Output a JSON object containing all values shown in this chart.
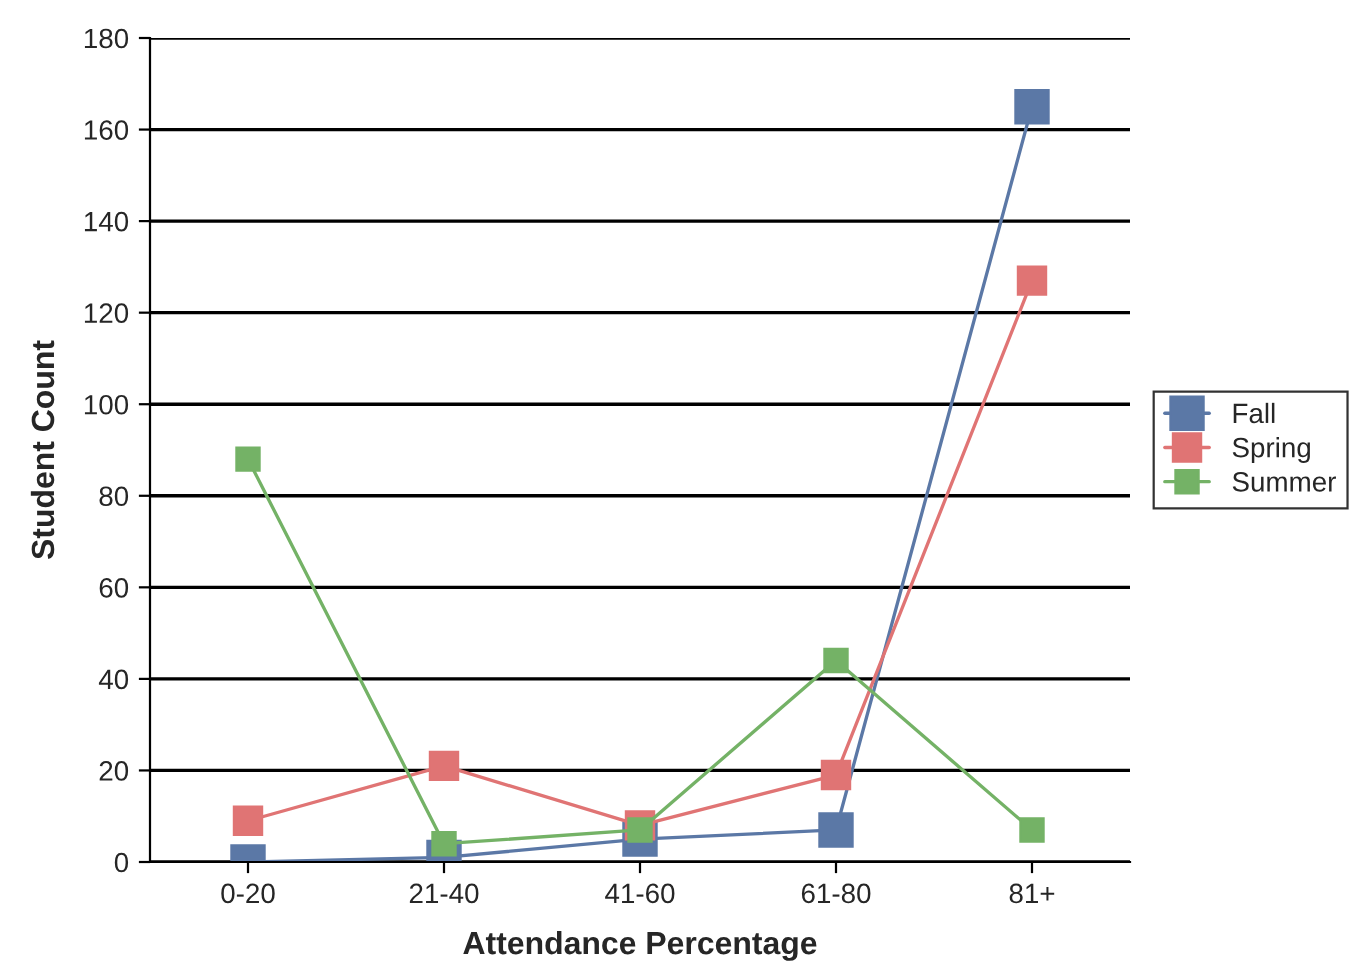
{
  "chart_data": {
    "type": "line",
    "xlabel": "Attendance Percentage",
    "ylabel": "Student Count",
    "categories": [
      "0-20",
      "21-40",
      "41-60",
      "61-80",
      "81+"
    ],
    "series": [
      {
        "name": "Fall",
        "color": "#5b78a6",
        "values": [
          0,
          1,
          5,
          7,
          165
        ]
      },
      {
        "name": "Spring",
        "color": "#e07474",
        "values": [
          9,
          21,
          8,
          19,
          127
        ]
      },
      {
        "name": "Summer",
        "color": "#74b266",
        "values": [
          88,
          4,
          7,
          44,
          7
        ]
      }
    ],
    "ylim": [
      0,
      180
    ],
    "yticks": [
      0,
      20,
      40,
      60,
      80,
      100,
      120,
      140,
      160,
      180
    ],
    "grid": "y",
    "legend": "right",
    "marker": "square",
    "line_style": "solid"
  }
}
